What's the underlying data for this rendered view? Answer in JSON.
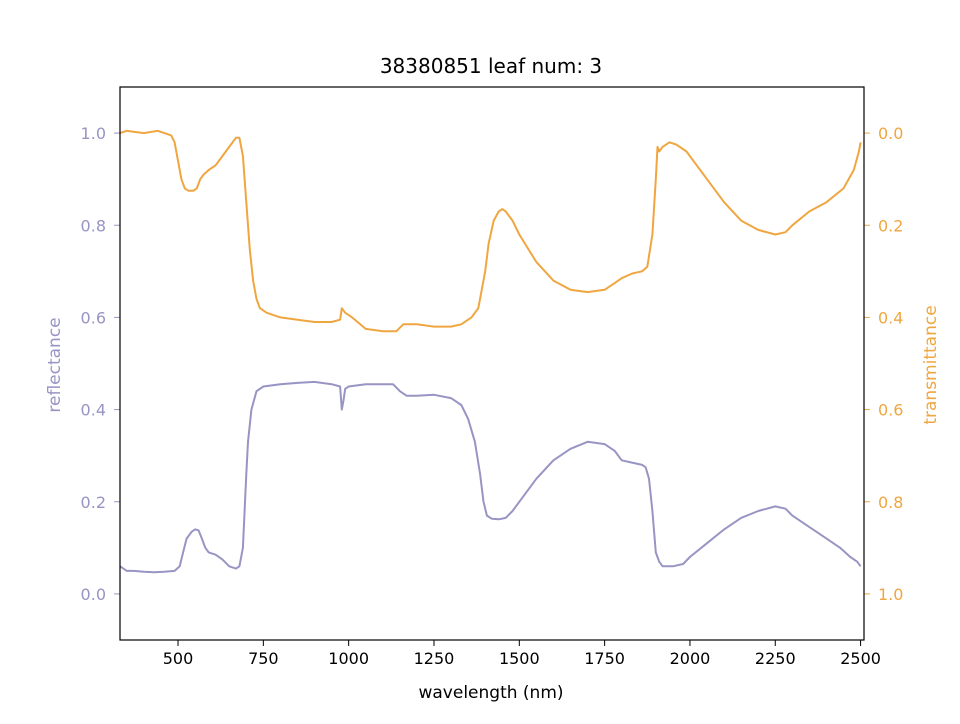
{
  "chart_data": {
    "type": "line",
    "title": "38380851 leaf num: 3",
    "xlabel": "wavelength (nm)",
    "xlim": [
      330,
      2510
    ],
    "x_ticks": [
      500,
      750,
      1000,
      1250,
      1500,
      1750,
      2000,
      2250,
      2500
    ],
    "left_axis": {
      "label": "reflectance",
      "color": "#9894c4",
      "ylim": [
        -0.1,
        1.1
      ],
      "ticks": [
        0.0,
        0.2,
        0.4,
        0.6,
        0.8,
        1.0
      ]
    },
    "right_axis": {
      "label": "transmittance",
      "color": "#f0a640",
      "ylim": [
        1.1,
        -0.1
      ],
      "inverted": true,
      "ticks": [
        0.0,
        0.2,
        0.4,
        0.6,
        0.8,
        1.0
      ]
    },
    "series": [
      {
        "axis": "left",
        "color": "#9894c4",
        "x": [
          330,
          340,
          350,
          370,
          400,
          430,
          460,
          490,
          505,
          515,
          525,
          540,
          550,
          560,
          570,
          580,
          590,
          610,
          630,
          650,
          670,
          680,
          690,
          695,
          700,
          705,
          715,
          730,
          750,
          800,
          850,
          900,
          950,
          975,
          980,
          985,
          990,
          1000,
          1050,
          1100,
          1130,
          1150,
          1170,
          1200,
          1250,
          1300,
          1330,
          1350,
          1370,
          1385,
          1395,
          1405,
          1420,
          1440,
          1460,
          1480,
          1500,
          1550,
          1600,
          1650,
          1700,
          1750,
          1780,
          1800,
          1830,
          1860,
          1870,
          1880,
          1890,
          1900,
          1910,
          1920,
          1950,
          1980,
          2000,
          2050,
          2100,
          2150,
          2200,
          2250,
          2280,
          2300,
          2350,
          2400,
          2440,
          2470,
          2490,
          2500
        ],
        "y": [
          0.06,
          0.055,
          0.05,
          0.05,
          0.048,
          0.047,
          0.048,
          0.05,
          0.06,
          0.09,
          0.12,
          0.135,
          0.14,
          0.138,
          0.12,
          0.1,
          0.09,
          0.085,
          0.075,
          0.06,
          0.055,
          0.06,
          0.1,
          0.18,
          0.26,
          0.33,
          0.4,
          0.44,
          0.45,
          0.455,
          0.458,
          0.46,
          0.455,
          0.45,
          0.4,
          0.42,
          0.445,
          0.45,
          0.455,
          0.455,
          0.455,
          0.44,
          0.43,
          0.43,
          0.432,
          0.425,
          0.41,
          0.38,
          0.33,
          0.26,
          0.2,
          0.17,
          0.163,
          0.162,
          0.165,
          0.18,
          0.2,
          0.25,
          0.29,
          0.315,
          0.33,
          0.325,
          0.31,
          0.29,
          0.285,
          0.28,
          0.275,
          0.25,
          0.18,
          0.09,
          0.07,
          0.06,
          0.06,
          0.065,
          0.08,
          0.11,
          0.14,
          0.165,
          0.18,
          0.19,
          0.185,
          0.17,
          0.145,
          0.12,
          0.1,
          0.08,
          0.07,
          0.06
        ]
      },
      {
        "axis": "right",
        "color": "#f0a640",
        "x": [
          330,
          350,
          400,
          440,
          460,
          480,
          490,
          500,
          510,
          520,
          530,
          545,
          555,
          565,
          575,
          590,
          610,
          630,
          650,
          660,
          670,
          680,
          690,
          700,
          710,
          720,
          730,
          740,
          760,
          800,
          850,
          900,
          950,
          975,
          980,
          990,
          1000,
          1010,
          1050,
          1100,
          1140,
          1160,
          1200,
          1250,
          1300,
          1330,
          1360,
          1380,
          1400,
          1410,
          1425,
          1440,
          1450,
          1460,
          1480,
          1500,
          1550,
          1600,
          1650,
          1700,
          1750,
          1780,
          1800,
          1830,
          1860,
          1875,
          1890,
          1900,
          1905,
          1910,
          1920,
          1940,
          1960,
          1990,
          2050,
          2100,
          2150,
          2200,
          2250,
          2280,
          2300,
          2350,
          2400,
          2450,
          2480,
          2495,
          2500
        ],
        "y": [
          0.0,
          -0.005,
          0.0,
          -0.005,
          0.0,
          0.005,
          0.02,
          0.06,
          0.1,
          0.12,
          0.125,
          0.125,
          0.12,
          0.1,
          0.09,
          0.08,
          0.07,
          0.05,
          0.03,
          0.02,
          0.01,
          0.01,
          0.05,
          0.15,
          0.25,
          0.32,
          0.36,
          0.38,
          0.39,
          0.4,
          0.405,
          0.41,
          0.41,
          0.405,
          0.38,
          0.39,
          0.395,
          0.4,
          0.425,
          0.43,
          0.43,
          0.415,
          0.415,
          0.42,
          0.42,
          0.415,
          0.4,
          0.38,
          0.3,
          0.24,
          0.19,
          0.17,
          0.165,
          0.17,
          0.19,
          0.22,
          0.28,
          0.32,
          0.34,
          0.345,
          0.34,
          0.325,
          0.315,
          0.305,
          0.3,
          0.29,
          0.22,
          0.1,
          0.03,
          0.04,
          0.03,
          0.02,
          0.025,
          0.04,
          0.1,
          0.15,
          0.19,
          0.21,
          0.22,
          0.215,
          0.2,
          0.17,
          0.15,
          0.12,
          0.08,
          0.04,
          0.02
        ]
      }
    ]
  }
}
